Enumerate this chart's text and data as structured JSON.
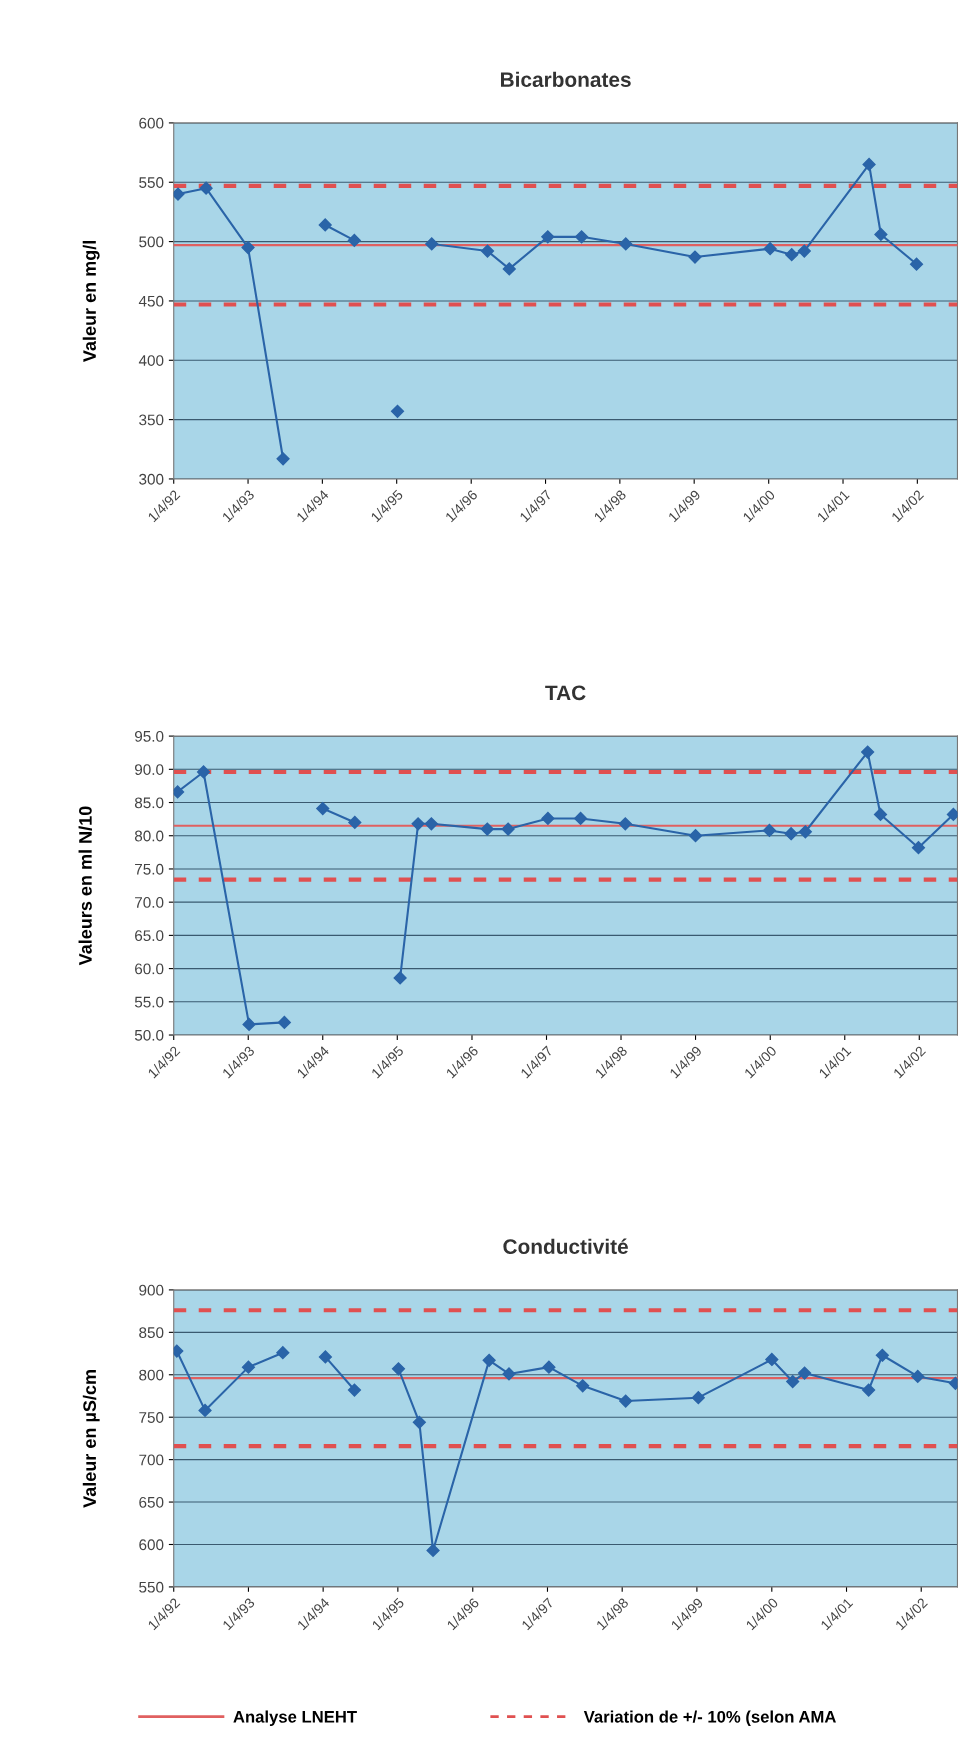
{
  "chart_data": [
    {
      "type": "line",
      "title": "Bicarbonates",
      "ylabel": "Valeur en mg/l",
      "marker": "diamond",
      "line_style": "solid",
      "grid": "y",
      "xlim": [
        "1992-04-01",
        "2002-10-15"
      ],
      "xticks": [
        {
          "value": "1992-04-01",
          "label": "1/4/92"
        },
        {
          "value": "1993-04-01",
          "label": "1/4/93"
        },
        {
          "value": "1994-04-01",
          "label": "1/4/94"
        },
        {
          "value": "1995-04-01",
          "label": "1/4/95"
        },
        {
          "value": "1996-04-01",
          "label": "1/4/96"
        },
        {
          "value": "1997-04-01",
          "label": "1/4/97"
        },
        {
          "value": "1998-04-01",
          "label": "1/4/98"
        },
        {
          "value": "1999-04-01",
          "label": "1/4/99"
        },
        {
          "value": "2000-04-01",
          "label": "1/4/00"
        },
        {
          "value": "2001-04-01",
          "label": "1/4/01"
        },
        {
          "value": "2002-04-01",
          "label": "1/4/02"
        }
      ],
      "ylim": [
        300,
        600
      ],
      "yticks": [
        300,
        350,
        400,
        450,
        500,
        550,
        600
      ],
      "series": [
        {
          "color": "#2a64a8",
          "x": [
            "1992-04-22",
            "1992-09-07",
            "1993-04-01",
            "1993-09-20",
            "1994-01-01",
            "1994-04-15",
            "1994-09-05",
            "1995-01-01",
            "1995-04-05",
            "1995-06-01",
            "1995-09-20",
            "1996-06-20",
            "1996-10-05",
            "1997-04-12",
            "1997-09-25",
            "1998-04-30",
            "1999-04-05",
            "2000-04-08",
            "2000-07-23",
            "2000-09-23",
            "2001-08-07",
            "2001-10-04",
            "2002-03-28"
          ],
          "values": [
            540,
            545,
            495,
            317,
            null,
            514,
            501,
            null,
            357,
            null,
            498,
            492,
            477,
            504,
            504,
            498,
            487,
            494,
            489,
            492,
            565,
            506,
            481
          ]
        }
      ],
      "ref_lines": [
        {
          "axis": "y",
          "value": 497,
          "color": "#e06060",
          "line_style": "solid"
        },
        {
          "axis": "y",
          "value": 547,
          "color": "#e05050",
          "line_style": "dashed"
        },
        {
          "axis": "y",
          "value": 447,
          "color": "#e05050",
          "line_style": "dashed"
        }
      ]
    },
    {
      "type": "line",
      "title": "TAC",
      "ylabel": "Valeurs en ml N/10",
      "marker": "diamond",
      "line_style": "solid",
      "grid": "y",
      "xlim": [
        "1992-04-01",
        "2002-10-05"
      ],
      "xticks": [
        {
          "value": "1992-04-01",
          "label": "1/4/92"
        },
        {
          "value": "1993-04-01",
          "label": "1/4/93"
        },
        {
          "value": "1994-04-01",
          "label": "1/4/94"
        },
        {
          "value": "1995-04-01",
          "label": "1/4/95"
        },
        {
          "value": "1996-04-01",
          "label": "1/4/96"
        },
        {
          "value": "1997-04-01",
          "label": "1/4/97"
        },
        {
          "value": "1998-04-01",
          "label": "1/4/98"
        },
        {
          "value": "1999-04-01",
          "label": "1/4/99"
        },
        {
          "value": "2000-04-01",
          "label": "1/4/00"
        },
        {
          "value": "2001-04-01",
          "label": "1/4/01"
        },
        {
          "value": "2002-04-01",
          "label": "1/4/02"
        }
      ],
      "ylim": [
        50,
        95
      ],
      "yticks": [
        {
          "value": 50,
          "label": "50.0"
        },
        {
          "value": 55,
          "label": "55.0"
        },
        {
          "value": 60,
          "label": "60.0"
        },
        {
          "value": 65,
          "label": "65.0"
        },
        {
          "value": 70,
          "label": "70.0"
        },
        {
          "value": 75,
          "label": "75.0"
        },
        {
          "value": 80,
          "label": "80.0"
        },
        {
          "value": 85,
          "label": "85.0"
        },
        {
          "value": 90,
          "label": "90.0"
        },
        {
          "value": 95,
          "label": "95.0"
        }
      ],
      "series": [
        {
          "color": "#2a64a8",
          "x": [
            "1992-04-20",
            "1992-08-25",
            "1993-04-05",
            "1993-09-25",
            "1994-01-01",
            "1994-04-01",
            "1994-09-05",
            "1995-01-01",
            "1995-04-15",
            "1995-07-12",
            "1995-09-15",
            "1996-06-15",
            "1996-09-25",
            "1997-04-08",
            "1997-09-15",
            "1998-04-22",
            "1999-04-01",
            "2000-03-28",
            "2000-07-12",
            "2000-09-20",
            "2001-07-22",
            "2001-09-23",
            "2002-03-28",
            "2002-09-15"
          ],
          "values": [
            86.6,
            89.6,
            51.6,
            51.9,
            null,
            84.1,
            82.0,
            null,
            58.6,
            81.8,
            81.8,
            81.0,
            81.0,
            82.6,
            82.6,
            81.8,
            80.0,
            80.8,
            80.3,
            80.6,
            92.6,
            83.2,
            78.2,
            83.2
          ]
        }
      ],
      "ref_lines": [
        {
          "axis": "y",
          "value": 81.5,
          "color": "#e06060",
          "line_style": "solid"
        },
        {
          "axis": "y",
          "value": 89.6,
          "color": "#e05050",
          "line_style": "dashed"
        },
        {
          "axis": "y",
          "value": 73.4,
          "color": "#e05050",
          "line_style": "dashed"
        }
      ]
    },
    {
      "type": "line",
      "title": "Conductivité",
      "ylabel": "Valeur en µS/cm",
      "marker": "diamond",
      "line_style": "solid",
      "grid": "y",
      "xlim": [
        "1992-04-01",
        "2002-09-25"
      ],
      "xticks": [
        {
          "value": "1992-04-01",
          "label": "1/4/92"
        },
        {
          "value": "1993-04-01",
          "label": "1/4/93"
        },
        {
          "value": "1994-04-01",
          "label": "1/4/94"
        },
        {
          "value": "1995-04-01",
          "label": "1/4/95"
        },
        {
          "value": "1996-04-01",
          "label": "1/4/96"
        },
        {
          "value": "1997-04-01",
          "label": "1/4/97"
        },
        {
          "value": "1998-04-01",
          "label": "1/4/98"
        },
        {
          "value": "1999-04-01",
          "label": "1/4/99"
        },
        {
          "value": "2000-04-01",
          "label": "1/4/00"
        },
        {
          "value": "2001-04-01",
          "label": "1/4/01"
        },
        {
          "value": "2002-04-01",
          "label": "1/4/02"
        }
      ],
      "ylim": [
        550,
        900
      ],
      "yticks": [
        550,
        600,
        650,
        700,
        750,
        800,
        850,
        900
      ],
      "series": [
        {
          "color": "#2a64a8",
          "x": [
            "1992-04-16",
            "1992-09-01",
            "1993-04-01",
            "1993-09-16",
            "1994-01-01",
            "1994-04-12",
            "1994-09-01",
            "1995-01-01",
            "1995-04-04",
            "1995-07-15",
            "1995-09-20",
            "1996-06-20",
            "1996-09-25",
            "1997-04-08",
            "1997-09-20",
            "1998-04-18",
            "1999-04-08",
            "2000-04-01",
            "2000-07-12",
            "2000-09-08",
            "2001-07-18",
            "2001-09-23",
            "2002-03-15",
            "2002-09-15"
          ],
          "values": [
            828,
            758,
            809,
            826,
            null,
            821,
            782,
            null,
            807,
            744,
            593,
            817,
            801,
            809,
            787,
            769,
            773,
            818,
            792,
            802,
            782,
            823,
            798,
            790
          ]
        }
      ],
      "legend": "bottom",
      "ref_lines": [
        {
          "axis": "y",
          "value": 796,
          "color": "#e06060",
          "line_style": "solid",
          "label": "Analyse LNEHT"
        },
        {
          "axis": "y",
          "value": 876,
          "color": "#e05050",
          "line_style": "dashed",
          "label": "Variation de +/- 10% (selon AMA"
        },
        {
          "axis": "y",
          "value": 716,
          "color": "#e05050",
          "line_style": "dashed"
        }
      ]
    }
  ]
}
